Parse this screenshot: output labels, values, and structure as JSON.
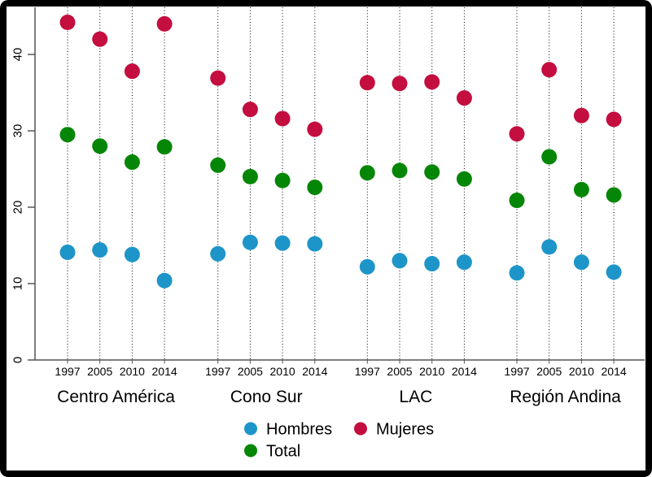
{
  "chart_data": {
    "type": "scatter",
    "title": "",
    "xlabel": "",
    "ylabel": "",
    "groups": [
      "Centro América",
      "Cono Sur",
      "LAC",
      "Región Andina"
    ],
    "years": [
      "1997",
      "2005",
      "2010",
      "2014"
    ],
    "y_ticks": [
      "0",
      "10",
      "20",
      "30",
      "40"
    ],
    "y_tick_values": [
      0,
      10,
      20,
      30,
      40
    ],
    "ylim": [
      0,
      46
    ],
    "grid": "dotted-vertical-per-year",
    "series": [
      {
        "name": "Hombres",
        "color": "#1e95c8",
        "values": [
          [
            14.1,
            14.4,
            13.8,
            10.4
          ],
          [
            13.9,
            15.4,
            15.3,
            15.2
          ],
          [
            12.2,
            13.0,
            12.6,
            12.8
          ],
          [
            11.4,
            14.8,
            12.8,
            11.5
          ]
        ]
      },
      {
        "name": "Mujeres",
        "color": "#c30e3f",
        "values": [
          [
            44.2,
            42.0,
            37.8,
            44.0
          ],
          [
            36.9,
            32.8,
            31.6,
            30.2
          ],
          [
            36.3,
            36.2,
            36.4,
            34.3
          ],
          [
            29.6,
            38.0,
            32.0,
            31.5
          ]
        ]
      },
      {
        "name": "Total",
        "color": "#068606",
        "values": [
          [
            29.5,
            28.0,
            25.9,
            27.9
          ],
          [
            25.5,
            24.0,
            23.5,
            22.6
          ],
          [
            24.5,
            24.8,
            24.6,
            23.7
          ],
          [
            20.9,
            26.6,
            22.3,
            21.6
          ]
        ]
      }
    ],
    "legend": {
      "position": "bottom-center",
      "rows": [
        [
          "Hombres",
          "Mujeres"
        ],
        [
          "Total"
        ]
      ]
    },
    "colors": {
      "axis": "#555555",
      "gridline": "#000000",
      "background": "#ffffff",
      "frame": "#000000",
      "text": "#000000"
    }
  }
}
